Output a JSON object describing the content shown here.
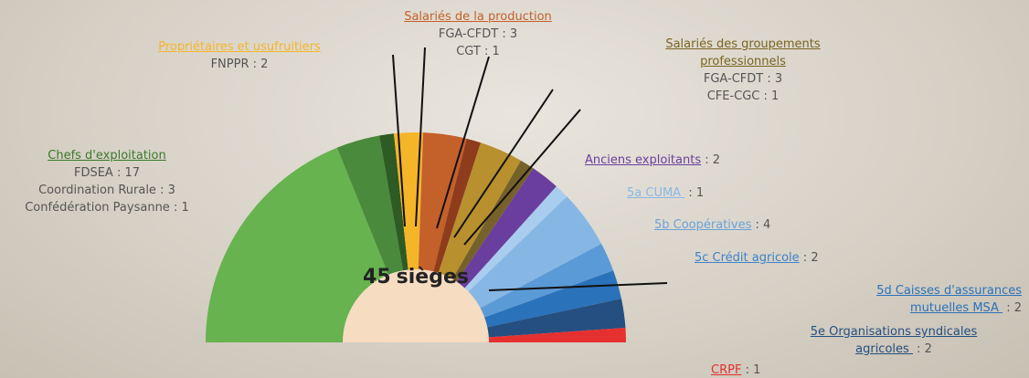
{
  "chart_data": {
    "type": "semicircle",
    "total": 45,
    "total_label": "sièges",
    "separator": " : ",
    "groups": [
      {
        "label": "Chefs d'exploitation",
        "label_color": "#3a7a2a",
        "items": [
          {
            "name": "FDSEA",
            "value": 17,
            "color": "#66b34f"
          },
          {
            "name": "Coordination Rurale",
            "value": 3,
            "color": "#4a8a3c"
          },
          {
            "name": "Confédération Paysanne",
            "value": 1,
            "color": "#2e5a24"
          }
        ]
      },
      {
        "label": "Propriétaires et usufruitiers",
        "label_color": "#f5b529",
        "items": [
          {
            "name": "FNPPR",
            "value": 2,
            "color": "#f5b529"
          }
        ]
      },
      {
        "label": "Salariés de la production",
        "label_color": "#c4602a",
        "items": [
          {
            "name": "FGA-CFDT",
            "value": 3,
            "color": "#c4602a"
          },
          {
            "name": "CGT",
            "value": 1,
            "color": "#8e3c1c"
          }
        ]
      },
      {
        "label": "Salariés des groupements professionnels",
        "label_color": "#7a6420",
        "items": [
          {
            "name": "FGA-CFDT",
            "value": 3,
            "color": "#b8902e"
          },
          {
            "name": "CFE-CGC",
            "value": 1,
            "color": "#76612a"
          }
        ]
      },
      {
        "label": "Anciens exploitants",
        "label_color": "#6a3e9e",
        "value": 2,
        "color": "#6a3e9e"
      },
      {
        "label": "5a CUMA ",
        "label_color": "#8ab8e6",
        "value": 1,
        "color": "#a9cdee"
      },
      {
        "label": "5b Coopératives",
        "label_color": "#6aa3da",
        "value": 4,
        "color": "#86b7e4"
      },
      {
        "label": "5c Crédit agricole",
        "label_color": "#3d82c8",
        "value": 2,
        "color": "#5a9ad6"
      },
      {
        "label": "5d Caisses d'assurances mutuelles MSA ",
        "label_color": "#2a72ba",
        "value": 2,
        "color": "#2a72ba"
      },
      {
        "label": "5e Organisations syndicales agricoles ",
        "label_color": "#244f80",
        "value": 2,
        "color": "#244f80"
      },
      {
        "label": "CRPF",
        "label_color": "#e53030",
        "value": 1,
        "color": "#e53030"
      }
    ]
  }
}
